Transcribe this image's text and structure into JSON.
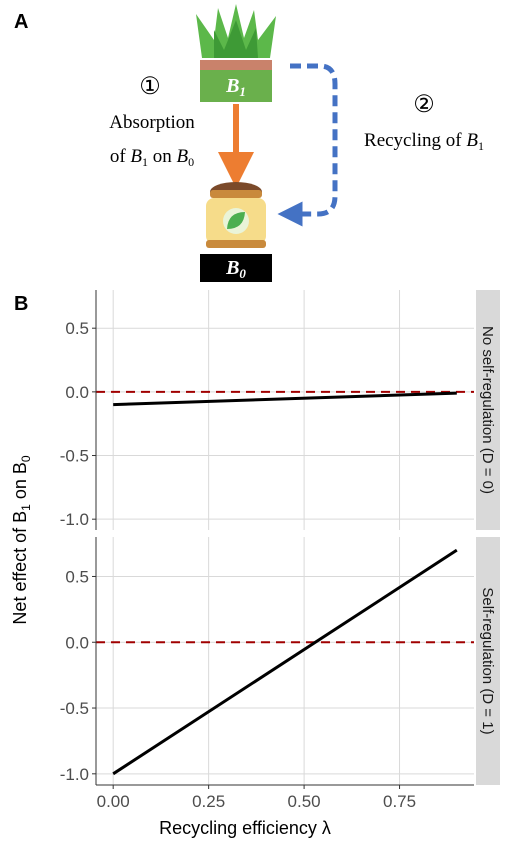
{
  "panel_a": {
    "panel_label": "A",
    "top_box": [
      "B",
      "1"
    ],
    "bottom_box": [
      "B",
      "0"
    ],
    "step1_number": "①",
    "step1_label": {
      "line1": "Absorption",
      "line2": [
        "of ",
        "B",
        "1",
        " on ",
        "B",
        "0"
      ]
    },
    "step2_number": "②",
    "step2_label": [
      "Recycling of ",
      "B",
      "1"
    ]
  },
  "chart_data": {
    "type": "line",
    "panel_label": "B",
    "x_label": "Recycling efficiency λ",
    "y_label": [
      "Net effect of  B",
      "1",
      " on B",
      "0"
    ],
    "xlim": [
      -0.045,
      0.945
    ],
    "xticks": [
      {
        "value": 0,
        "label": "0.00"
      },
      {
        "value": 0.25,
        "label": "0.25"
      },
      {
        "value": 0.5,
        "label": "0.50"
      },
      {
        "value": 0.75,
        "label": "0.75"
      }
    ],
    "ylim": [
      -1.085,
      0.8
    ],
    "yticks": [
      0.5,
      {
        "value": 0,
        "label": "0.0"
      },
      -0.5,
      {
        "value": -1,
        "label": "-1.0"
      }
    ],
    "grid": true,
    "hline": 0,
    "hline_color": "#a00000",
    "facets": [
      {
        "strip": "No self-regulation (D = 0)",
        "x": [
          0,
          0.9
        ],
        "values": [
          -0.1,
          -0.01
        ],
        "color": "#000000"
      },
      {
        "strip": "Self-regulation (D = 1)",
        "x": [
          0,
          0.9
        ],
        "values": [
          -1.0,
          0.7
        ],
        "color": "#000000"
      }
    ]
  }
}
